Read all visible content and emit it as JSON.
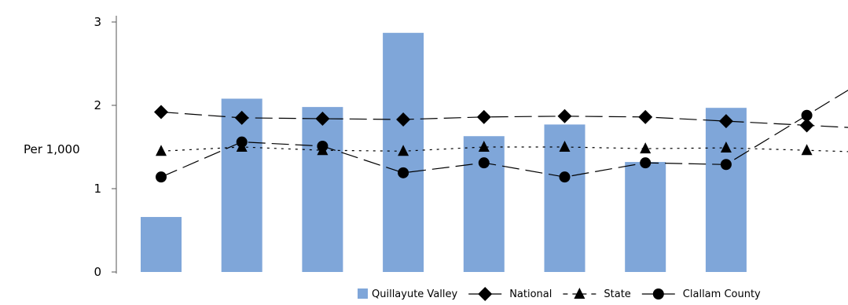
{
  "chart_data": {
    "type": "bar",
    "categories": [
      "",
      "",
      "",
      "",
      "",
      "",
      "",
      "",
      ""
    ],
    "ylabel": "Per 1,000",
    "ylim": [
      0,
      3
    ],
    "yticks": [
      "0",
      "1",
      "2",
      "3"
    ],
    "grid": false,
    "legend_position": "bottom-right",
    "series": [
      {
        "name": "Quillayute Valley",
        "kind": "bar",
        "color": "#7fa6d9",
        "values": [
          0.66,
          2.08,
          1.98,
          2.87,
          1.63,
          1.77,
          1.32,
          1.97,
          null
        ]
      },
      {
        "name": "National",
        "kind": "line",
        "marker": "diamond",
        "dash": "long-dash",
        "color": "#000000",
        "values": [
          1.92,
          1.85,
          1.84,
          1.83,
          1.86,
          1.87,
          1.86,
          1.81,
          1.76
        ]
      },
      {
        "name": "State",
        "kind": "line",
        "marker": "triangle",
        "dash": "dotted",
        "color": "#000000",
        "values": [
          1.45,
          1.5,
          1.46,
          1.45,
          1.5,
          1.5,
          1.48,
          1.49,
          1.46
        ]
      },
      {
        "name": "Clallam County",
        "kind": "line",
        "marker": "circle",
        "dash": "long-dash",
        "color": "#000000",
        "values": [
          1.14,
          1.56,
          1.51,
          1.19,
          1.31,
          1.14,
          1.31,
          1.29,
          1.88
        ]
      }
    ]
  }
}
